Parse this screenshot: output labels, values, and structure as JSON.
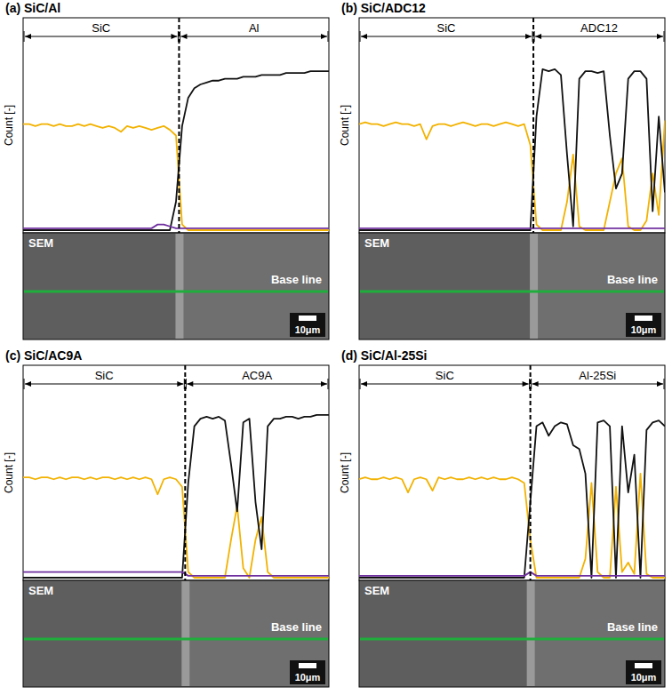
{
  "chart_data": [
    {
      "type": "line",
      "title": "(a) SiC/Al",
      "y_label": "Count [-]",
      "tick_labels": false,
      "xlim": [
        0,
        100
      ],
      "ylim": [
        0,
        100
      ],
      "interface": 51,
      "regions": [
        {
          "label": "SiC",
          "from": 0,
          "to": 51
        },
        {
          "label": "Al",
          "from": 51,
          "to": 100
        }
      ],
      "image": {
        "label": "SEM",
        "baseline_label": "Base line",
        "scale_label": "10μm"
      },
      "x": [
        0,
        2,
        4,
        6,
        8,
        10,
        12,
        14,
        16,
        18,
        20,
        22,
        24,
        26,
        28,
        30,
        32,
        34,
        36,
        38,
        40,
        42,
        44,
        46,
        48,
        50,
        52,
        54,
        56,
        58,
        60,
        62,
        64,
        66,
        68,
        70,
        72,
        74,
        76,
        78,
        80,
        82,
        84,
        86,
        88,
        90,
        92,
        94,
        96,
        98,
        100
      ],
      "series": [
        {
          "color": "#f2b200",
          "values": [
            56,
            56,
            55,
            56,
            56,
            55,
            56,
            55,
            55,
            56,
            55,
            56,
            55,
            54,
            55,
            54,
            52,
            55,
            54,
            55,
            54,
            53,
            54,
            55,
            53,
            50,
            3,
            0,
            0,
            0,
            0,
            0,
            0,
            0,
            0,
            0,
            0,
            0,
            0,
            0,
            0,
            0,
            0,
            0,
            0,
            0,
            0,
            0,
            0,
            0,
            0
          ]
        },
        {
          "color": "#111111",
          "values": [
            0,
            0,
            0,
            0,
            0,
            0,
            0,
            0,
            0,
            0,
            0,
            0,
            0,
            0,
            0,
            0,
            0,
            0,
            0,
            0,
            0,
            0,
            0,
            0,
            0,
            15,
            55,
            70,
            75,
            77,
            78,
            79,
            79,
            80,
            80,
            80,
            81,
            81,
            81,
            82,
            82,
            82,
            82,
            83,
            83,
            83,
            83,
            84,
            84,
            84,
            84
          ]
        },
        {
          "color": "#7030a0",
          "values": [
            1,
            1,
            1,
            1,
            1,
            1,
            1,
            1,
            1,
            1,
            1,
            1,
            1,
            1,
            1,
            1,
            1,
            1,
            1,
            1,
            1,
            1,
            3,
            3,
            2,
            1,
            1,
            1,
            1,
            1,
            1,
            1,
            1,
            1,
            1,
            1,
            1,
            1,
            1,
            1,
            1,
            1,
            1,
            1,
            1,
            1,
            1,
            1,
            1,
            1,
            1
          ]
        }
      ]
    },
    {
      "type": "line",
      "title": "(b) SiC/ADC12",
      "y_label": "Count [-]",
      "tick_labels": false,
      "xlim": [
        0,
        100
      ],
      "ylim": [
        0,
        100
      ],
      "interface": 57,
      "regions": [
        {
          "label": "SiC",
          "from": 0,
          "to": 57
        },
        {
          "label": "ADC12",
          "from": 57,
          "to": 100
        }
      ],
      "image": {
        "label": "SEM",
        "baseline_label": "Base line",
        "scale_label": "10μm"
      },
      "x": [
        0,
        2,
        4,
        6,
        8,
        10,
        12,
        14,
        16,
        18,
        20,
        22,
        24,
        26,
        28,
        30,
        32,
        34,
        36,
        38,
        40,
        42,
        44,
        46,
        48,
        50,
        52,
        54,
        56,
        58,
        60,
        62,
        64,
        66,
        68,
        70,
        72,
        74,
        76,
        78,
        80,
        82,
        84,
        86,
        88,
        90,
        92,
        94,
        96,
        98,
        100
      ],
      "series": [
        {
          "color": "#f2b200",
          "values": [
            56,
            57,
            56,
            56,
            55,
            56,
            57,
            56,
            56,
            55,
            56,
            48,
            55,
            56,
            56,
            55,
            56,
            57,
            56,
            55,
            56,
            56,
            55,
            56,
            57,
            56,
            55,
            56,
            45,
            3,
            0,
            0,
            0,
            0,
            15,
            40,
            2,
            0,
            0,
            0,
            0,
            15,
            30,
            38,
            2,
            0,
            0,
            5,
            30,
            8,
            58
          ]
        },
        {
          "color": "#111111",
          "values": [
            0,
            0,
            0,
            0,
            0,
            0,
            0,
            0,
            0,
            0,
            0,
            0,
            0,
            0,
            0,
            0,
            0,
            0,
            0,
            0,
            0,
            0,
            0,
            0,
            0,
            0,
            0,
            0,
            0,
            60,
            85,
            84,
            85,
            82,
            40,
            2,
            80,
            84,
            84,
            83,
            84,
            50,
            22,
            30,
            80,
            84,
            84,
            80,
            10,
            60,
            20
          ]
        },
        {
          "color": "#7030a0",
          "values": [
            1,
            1,
            1,
            1,
            1,
            1,
            1,
            1,
            1,
            1,
            1,
            1,
            1,
            1,
            1,
            1,
            1,
            1,
            1,
            1,
            1,
            1,
            1,
            1,
            1,
            1,
            1,
            1,
            1,
            1,
            1,
            1,
            1,
            1,
            1,
            1,
            1,
            1,
            1,
            1,
            1,
            1,
            1,
            1,
            1,
            1,
            1,
            1,
            1,
            1,
            1
          ]
        }
      ]
    },
    {
      "type": "line",
      "title": "(c) SiC/AC9A",
      "y_label": "Count [-]",
      "tick_labels": false,
      "xlim": [
        0,
        100
      ],
      "ylim": [
        0,
        100
      ],
      "interface": 53,
      "regions": [
        {
          "label": "SiC",
          "from": 0,
          "to": 53
        },
        {
          "label": "AC9A",
          "from": 53,
          "to": 100
        }
      ],
      "image": {
        "label": "SEM",
        "baseline_label": "Base line",
        "scale_label": "10μm"
      },
      "x": [
        0,
        2,
        4,
        6,
        8,
        10,
        12,
        14,
        16,
        18,
        20,
        22,
        24,
        26,
        28,
        30,
        32,
        34,
        36,
        38,
        40,
        42,
        44,
        46,
        48,
        50,
        52,
        54,
        56,
        58,
        60,
        62,
        64,
        66,
        68,
        70,
        72,
        74,
        76,
        78,
        80,
        82,
        84,
        86,
        88,
        90,
        92,
        94,
        96,
        98,
        100
      ],
      "series": [
        {
          "color": "#f2b200",
          "values": [
            53,
            53,
            52,
            53,
            53,
            52,
            53,
            52,
            53,
            53,
            52,
            53,
            52,
            53,
            53,
            52,
            53,
            52,
            53,
            52,
            53,
            52,
            44,
            52,
            53,
            52,
            48,
            3,
            0,
            0,
            0,
            0,
            0,
            0,
            20,
            38,
            5,
            0,
            20,
            32,
            3,
            0,
            0,
            0,
            0,
            0,
            0,
            0,
            0,
            0,
            0
          ]
        },
        {
          "color": "#111111",
          "values": [
            0,
            0,
            0,
            0,
            0,
            0,
            0,
            0,
            0,
            0,
            0,
            0,
            0,
            0,
            0,
            0,
            0,
            0,
            0,
            0,
            0,
            0,
            0,
            0,
            0,
            0,
            0,
            50,
            80,
            84,
            85,
            84,
            85,
            83,
            60,
            35,
            82,
            84,
            40,
            15,
            80,
            84,
            84,
            85,
            85,
            84,
            85,
            85,
            86,
            86,
            86
          ]
        },
        {
          "color": "#7030a0",
          "values": [
            3,
            3,
            3,
            3,
            3,
            3,
            3,
            3,
            3,
            3,
            3,
            3,
            3,
            3,
            3,
            3,
            3,
            3,
            3,
            3,
            3,
            3,
            3,
            3,
            3,
            3,
            3,
            1,
            1,
            1,
            1,
            1,
            1,
            1,
            1,
            1,
            1,
            1,
            1,
            1,
            1,
            1,
            1,
            1,
            1,
            1,
            1,
            1,
            1,
            1,
            1
          ]
        }
      ]
    },
    {
      "type": "line",
      "title": "(d) SiC/Al-25Si",
      "y_label": "Count [-]",
      "tick_labels": false,
      "xlim": [
        0,
        100
      ],
      "ylim": [
        0,
        100
      ],
      "interface": 56,
      "regions": [
        {
          "label": "SiC",
          "from": 0,
          "to": 56
        },
        {
          "label": "Al-25Si",
          "from": 56,
          "to": 100
        }
      ],
      "image": {
        "label": "SEM",
        "baseline_label": "Base line",
        "scale_label": "10μm"
      },
      "x": [
        0,
        2,
        4,
        6,
        8,
        10,
        12,
        14,
        16,
        18,
        20,
        22,
        24,
        26,
        28,
        30,
        32,
        34,
        36,
        38,
        40,
        42,
        44,
        46,
        48,
        50,
        52,
        54,
        56,
        58,
        60,
        62,
        64,
        66,
        68,
        70,
        72,
        74,
        76,
        78,
        80,
        82,
        84,
        86,
        88,
        90,
        92,
        94,
        96,
        98,
        100
      ],
      "series": [
        {
          "color": "#f2b200",
          "values": [
            52,
            53,
            52,
            52,
            53,
            52,
            53,
            52,
            45,
            52,
            53,
            52,
            46,
            53,
            52,
            53,
            52,
            52,
            53,
            52,
            53,
            52,
            53,
            52,
            52,
            53,
            52,
            50,
            20,
            0,
            0,
            0,
            0,
            0,
            0,
            0,
            0,
            10,
            50,
            3,
            0,
            0,
            48,
            3,
            8,
            2,
            55,
            2,
            0,
            0,
            0
          ]
        },
        {
          "color": "#111111",
          "values": [
            0,
            0,
            0,
            0,
            0,
            0,
            0,
            0,
            0,
            0,
            0,
            0,
            0,
            0,
            0,
            0,
            0,
            0,
            0,
            0,
            0,
            0,
            0,
            0,
            0,
            0,
            0,
            0,
            40,
            80,
            82,
            75,
            80,
            82,
            81,
            70,
            68,
            55,
            0,
            82,
            83,
            80,
            0,
            80,
            45,
            65,
            0,
            78,
            82,
            83,
            80
          ]
        },
        {
          "color": "#7030a0",
          "values": [
            1,
            1,
            1,
            1,
            1,
            1,
            1,
            1,
            1,
            1,
            1,
            1,
            1,
            1,
            1,
            1,
            1,
            1,
            1,
            1,
            1,
            1,
            1,
            1,
            1,
            1,
            1,
            1,
            3,
            1,
            1,
            1,
            1,
            1,
            1,
            1,
            1,
            1,
            1,
            1,
            1,
            1,
            1,
            1,
            1,
            1,
            1,
            1,
            1,
            1,
            1
          ]
        }
      ]
    }
  ]
}
